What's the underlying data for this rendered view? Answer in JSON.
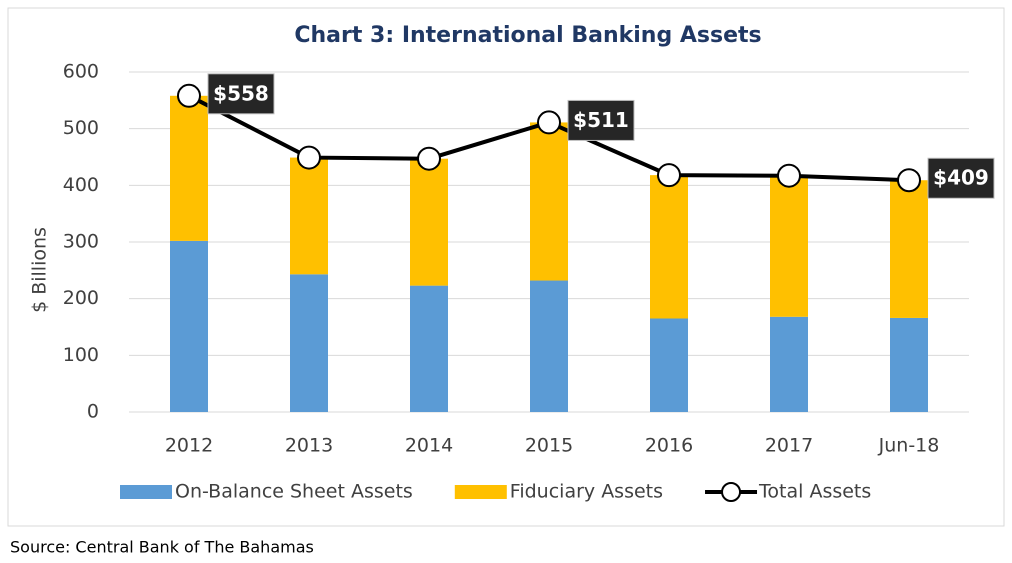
{
  "chart_data": {
    "type": "bar",
    "stacked": true,
    "title": "Chart 3: International Banking Assets",
    "y_label": "$ Billions",
    "source": "Source: Central Bank of The Bahamas",
    "categories": [
      "2012",
      "2013",
      "2014",
      "2015",
      "2016",
      "2017",
      "Jun-18"
    ],
    "ylim": [
      0,
      600
    ],
    "yticks": [
      0,
      100,
      200,
      300,
      400,
      500,
      600
    ],
    "grid": true,
    "legend": "bottom",
    "series": [
      {
        "name": "On-Balance Sheet Assets",
        "color": "#5b9bd5",
        "type": "bar",
        "values": [
          302,
          243,
          223,
          232,
          165,
          168,
          166
        ]
      },
      {
        "name": "Fiduciary Assets",
        "color": "#ffc000",
        "type": "bar",
        "values": [
          256,
          206,
          224,
          279,
          253,
          249,
          243
        ]
      },
      {
        "name": "Total Assets",
        "color": "#000000",
        "type": "line",
        "values": [
          558,
          449,
          447,
          511,
          418,
          417,
          409
        ],
        "value_labels": [
          "$558",
          null,
          null,
          "$511",
          null,
          null,
          "$409"
        ]
      }
    ]
  }
}
